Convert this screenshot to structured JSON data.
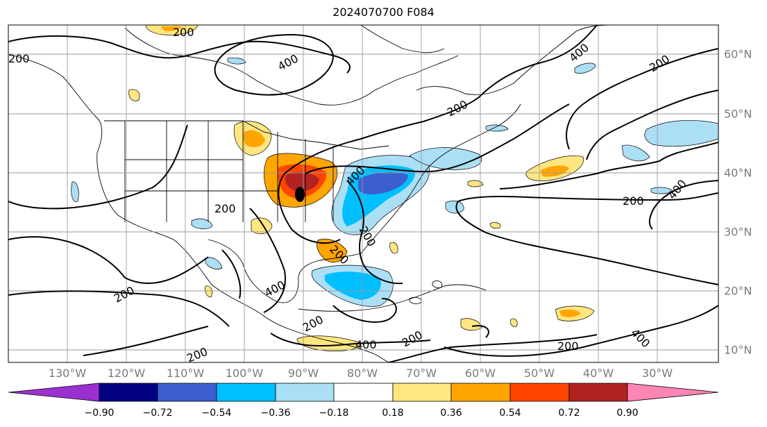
{
  "title": "2024070700 F084",
  "longitude_labels": [
    "130°W",
    "120°W",
    "110°W",
    "100°W",
    "90°W",
    "80°W",
    "70°W",
    "60°W",
    "50°W",
    "40°W",
    "30°W"
  ],
  "latitude_labels": [
    "60°N",
    "50°N",
    "40°N",
    "30°N",
    "20°N",
    "10°N"
  ],
  "contour_labels": [
    "200",
    "400"
  ],
  "colorbar": {
    "ticks": [
      "−0.90",
      "−0.72",
      "−0.54",
      "−0.36",
      "−0.18",
      "0.18",
      "0.36",
      "0.54",
      "0.72",
      "0.90"
    ],
    "colors": [
      "#9b30d0",
      "#000080",
      "#3c5fd0",
      "#00bfff",
      "#aadff5",
      "#ffffff",
      "#ffe680",
      "#ffa500",
      "#ff4500",
      "#b22222",
      "#ff85b4"
    ]
  }
}
